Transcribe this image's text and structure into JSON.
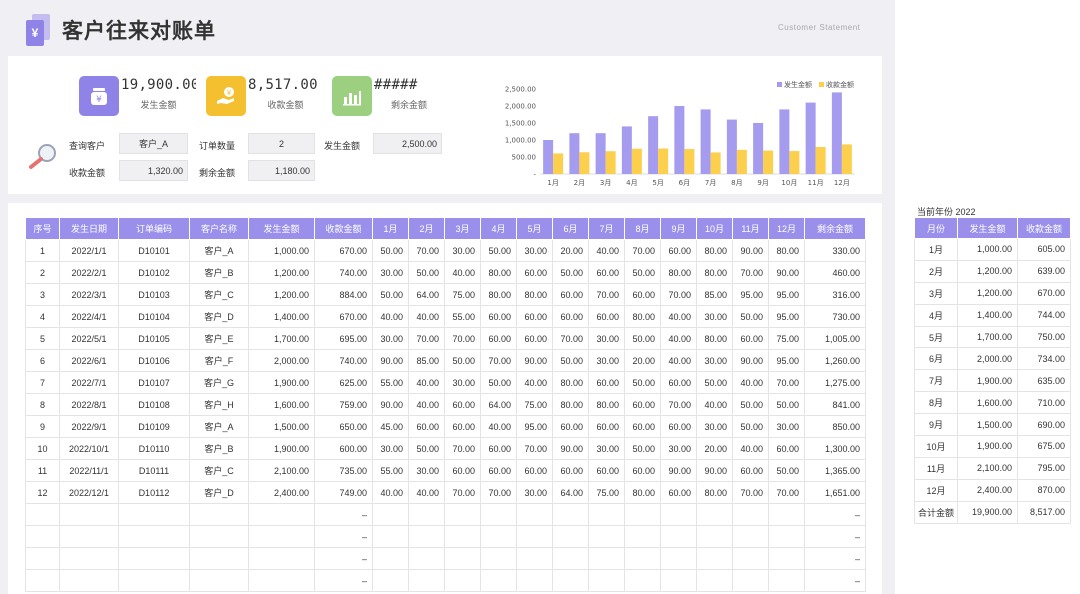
{
  "header": {
    "title": "客户往来对账单",
    "subtitle": "Customer  Statement",
    "logo_glyph": "¥"
  },
  "kpis": [
    {
      "value": "19,900.00",
      "label": "发生金额",
      "color": "#8f83e8",
      "icon": "money-jar-icon"
    },
    {
      "value": "8,517.00",
      "label": "收款金额",
      "color": "#f5c030",
      "icon": "hand-coin-icon"
    },
    {
      "value": "#####",
      "label": "剩余金额",
      "color": "#9ccf7f",
      "icon": "bar-chart-icon"
    }
  ],
  "query": {
    "customer_label": "查询客户",
    "customer_value": "客户_A",
    "order_count_label": "订单数量",
    "order_count_value": "2",
    "amount_label": "发生金额",
    "amount_value": "2,500.00",
    "received_label": "收款金额",
    "received_value": "1,320.00",
    "remaining_label": "剩余金额",
    "remaining_value": "1,180.00"
  },
  "chart_data": {
    "type": "bar",
    "categories": [
      "1月",
      "2月",
      "3月",
      "4月",
      "5月",
      "6月",
      "7月",
      "8月",
      "9月",
      "10月",
      "11月",
      "12月"
    ],
    "series": [
      {
        "name": "发生金额",
        "color": "#a59bef",
        "values": [
          1000,
          1200,
          1200,
          1400,
          1700,
          2000,
          1900,
          1600,
          1500,
          1900,
          2100,
          2400
        ]
      },
      {
        "name": "收款金额",
        "color": "#fccf4d",
        "values": [
          605,
          639,
          670,
          744,
          750,
          734,
          635,
          710,
          690,
          675,
          795,
          870
        ]
      }
    ],
    "yticks": [
      "2,500.00",
      "2,000.00",
      "1,500.00",
      "1,000.00",
      "500.00",
      "-"
    ],
    "ylim": [
      0,
      2500
    ],
    "legend_position": "top-right"
  },
  "table": {
    "headers": [
      "序号",
      "发生日期",
      "订单编码",
      "客户名称",
      "发生金额",
      "收款金额",
      "1月",
      "2月",
      "3月",
      "4月",
      "5月",
      "6月",
      "7月",
      "8月",
      "9月",
      "10月",
      "11月",
      "12月",
      "剩余金额"
    ],
    "rows": [
      [
        "1",
        "2022/1/1",
        "D10101",
        "客户_A",
        "1,000.00",
        "670.00",
        "50.00",
        "70.00",
        "30.00",
        "50.00",
        "30.00",
        "20.00",
        "40.00",
        "70.00",
        "60.00",
        "80.00",
        "90.00",
        "80.00",
        "330.00"
      ],
      [
        "2",
        "2022/2/1",
        "D10102",
        "客户_B",
        "1,200.00",
        "740.00",
        "30.00",
        "50.00",
        "40.00",
        "80.00",
        "60.00",
        "50.00",
        "60.00",
        "50.00",
        "80.00",
        "80.00",
        "70.00",
        "90.00",
        "460.00"
      ],
      [
        "3",
        "2022/3/1",
        "D10103",
        "客户_C",
        "1,200.00",
        "884.00",
        "50.00",
        "64.00",
        "75.00",
        "80.00",
        "80.00",
        "60.00",
        "70.00",
        "60.00",
        "70.00",
        "85.00",
        "95.00",
        "95.00",
        "316.00"
      ],
      [
        "4",
        "2022/4/1",
        "D10104",
        "客户_D",
        "1,400.00",
        "670.00",
        "40.00",
        "40.00",
        "55.00",
        "60.00",
        "60.00",
        "60.00",
        "60.00",
        "80.00",
        "40.00",
        "30.00",
        "50.00",
        "95.00",
        "730.00"
      ],
      [
        "5",
        "2022/5/1",
        "D10105",
        "客户_E",
        "1,700.00",
        "695.00",
        "30.00",
        "70.00",
        "70.00",
        "60.00",
        "60.00",
        "70.00",
        "30.00",
        "50.00",
        "40.00",
        "80.00",
        "60.00",
        "75.00",
        "1,005.00"
      ],
      [
        "6",
        "2022/6/1",
        "D10106",
        "客户_F",
        "2,000.00",
        "740.00",
        "90.00",
        "85.00",
        "50.00",
        "70.00",
        "90.00",
        "50.00",
        "30.00",
        "20.00",
        "40.00",
        "30.00",
        "90.00",
        "95.00",
        "1,260.00"
      ],
      [
        "7",
        "2022/7/1",
        "D10107",
        "客户_G",
        "1,900.00",
        "625.00",
        "55.00",
        "40.00",
        "30.00",
        "50.00",
        "40.00",
        "80.00",
        "60.00",
        "50.00",
        "60.00",
        "50.00",
        "40.00",
        "70.00",
        "1,275.00"
      ],
      [
        "8",
        "2022/8/1",
        "D10108",
        "客户_H",
        "1,600.00",
        "759.00",
        "90.00",
        "40.00",
        "60.00",
        "64.00",
        "75.00",
        "80.00",
        "80.00",
        "60.00",
        "70.00",
        "40.00",
        "50.00",
        "50.00",
        "841.00"
      ],
      [
        "9",
        "2022/9/1",
        "D10109",
        "客户_A",
        "1,500.00",
        "650.00",
        "45.00",
        "60.00",
        "60.00",
        "40.00",
        "95.00",
        "60.00",
        "60.00",
        "60.00",
        "60.00",
        "30.00",
        "50.00",
        "30.00",
        "850.00"
      ],
      [
        "10",
        "2022/10/1",
        "D10110",
        "客户_B",
        "1,900.00",
        "600.00",
        "30.00",
        "50.00",
        "70.00",
        "60.00",
        "70.00",
        "90.00",
        "30.00",
        "50.00",
        "30.00",
        "20.00",
        "40.00",
        "60.00",
        "1,300.00"
      ],
      [
        "11",
        "2022/11/1",
        "D10111",
        "客户_C",
        "2,100.00",
        "735.00",
        "55.00",
        "30.00",
        "60.00",
        "60.00",
        "60.00",
        "60.00",
        "60.00",
        "60.00",
        "90.00",
        "90.00",
        "60.00",
        "50.00",
        "1,365.00"
      ],
      [
        "12",
        "2022/12/1",
        "D10112",
        "客户_D",
        "2,400.00",
        "749.00",
        "40.00",
        "40.00",
        "70.00",
        "70.00",
        "30.00",
        "64.00",
        "75.00",
        "80.00",
        "60.00",
        "80.00",
        "70.00",
        "70.00",
        "1,651.00"
      ]
    ],
    "empty_row_dash": "–",
    "empty_rows": 4
  },
  "side": {
    "title": "当前年份 2022",
    "headers": [
      "月份",
      "发生金额",
      "收款金额"
    ],
    "rows": [
      [
        "1月",
        "1,000.00",
        "605.00"
      ],
      [
        "2月",
        "1,200.00",
        "639.00"
      ],
      [
        "3月",
        "1,200.00",
        "670.00"
      ],
      [
        "4月",
        "1,400.00",
        "744.00"
      ],
      [
        "5月",
        "1,700.00",
        "750.00"
      ],
      [
        "6月",
        "2,000.00",
        "734.00"
      ],
      [
        "7月",
        "1,900.00",
        "635.00"
      ],
      [
        "8月",
        "1,600.00",
        "710.00"
      ],
      [
        "9月",
        "1,500.00",
        "690.00"
      ],
      [
        "10月",
        "1,900.00",
        "675.00"
      ],
      [
        "11月",
        "2,100.00",
        "795.00"
      ],
      [
        "12月",
        "2,400.00",
        "870.00"
      ]
    ],
    "total": [
      "合计金额",
      "19,900.00",
      "8,517.00"
    ]
  }
}
